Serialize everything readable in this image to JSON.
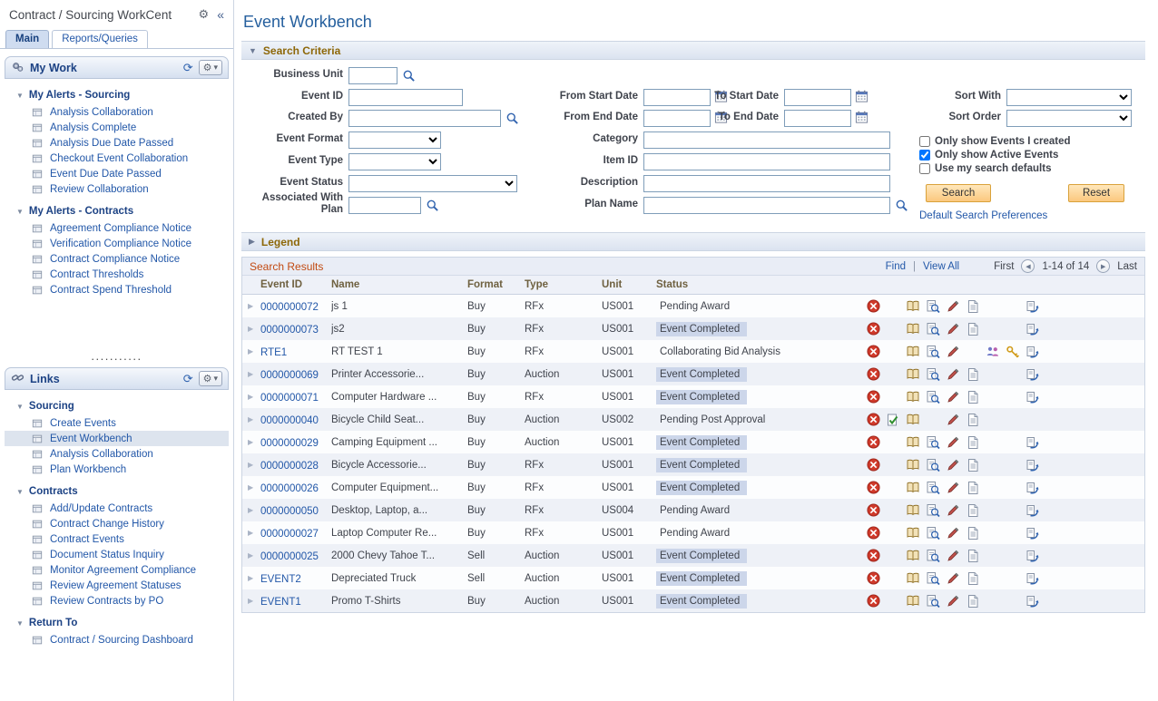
{
  "icons": {
    "settings": "⚙",
    "collapse": "«",
    "refresh": "⟳",
    "dropdown": "▾",
    "expanded": "▼",
    "collapsed": "▶",
    "expand_row": "▶",
    "prev": "◀",
    "next": "▶"
  },
  "colors": {
    "accent_blue": "#2257a8",
    "section_title": "#8d6708",
    "grid_title": "#c24a12",
    "status_highlight": "#ccd6ea",
    "button": "#fbc87e"
  },
  "sidebar": {
    "title": "Contract / Sourcing WorkCent",
    "separator": "...........",
    "tabs": [
      {
        "label": "Main",
        "active": true
      },
      {
        "label": "Reports/Queries",
        "active": false
      }
    ],
    "pagelets": [
      {
        "title": "My Work",
        "icon": "gears",
        "sections": [
          {
            "title": "My Alerts - Sourcing",
            "items": [
              "Analysis Collaboration",
              "Analysis Complete",
              "Analysis Due Date Passed",
              "Checkout Event Collaboration",
              "Event Due Date Passed",
              "Review Collaboration"
            ]
          },
          {
            "title": "My Alerts - Contracts",
            "items": [
              "Agreement Compliance Notice",
              "Verification Compliance Notice",
              "Contract Compliance Notice",
              "Contract Thresholds",
              "Contract Spend Threshold"
            ]
          }
        ]
      },
      {
        "title": "Links",
        "icon": "chain",
        "sections": [
          {
            "title": "Sourcing",
            "selected": "Event Workbench",
            "items": [
              "Create Events",
              "Event Workbench",
              "Analysis Collaboration",
              "Plan Workbench"
            ]
          },
          {
            "title": "Contracts",
            "items": [
              "Add/Update Contracts",
              "Contract Change History",
              "Contract Events",
              "Document Status Inquiry",
              "Monitor Agreement Compliance",
              "Review Agreement Statuses",
              "Review Contracts by PO"
            ]
          },
          {
            "title": "Return To",
            "items": [
              "Contract / Sourcing Dashboard"
            ]
          }
        ]
      }
    ]
  },
  "main": {
    "title": "Event Workbench",
    "search": {
      "section_title": "Search Criteria",
      "fields": {
        "business_unit": "Business Unit",
        "event_id": "Event ID",
        "created_by": "Created By",
        "event_format": "Event Format",
        "event_type": "Event Type",
        "event_status": "Event Status",
        "associated_with_plan": "Associated With Plan",
        "from_start_date": "From Start Date",
        "to_start_date": "To Start Date",
        "from_end_date": "From End Date",
        "to_end_date": "To End Date",
        "category": "Category",
        "item_id": "Item ID",
        "description": "Description",
        "plan_name": "Plan Name",
        "sort_with": "Sort With",
        "sort_order": "Sort Order"
      },
      "checkboxes": [
        {
          "label": "Only show Events I created",
          "checked": false
        },
        {
          "label": "Only show Active Events",
          "checked": true
        },
        {
          "label": "Use my search defaults",
          "checked": false
        }
      ],
      "buttons": {
        "search": "Search",
        "reset": "Reset"
      },
      "preferences_link": "Default Search Preferences"
    },
    "legend_title": "Legend",
    "grid": {
      "title": "Search Results",
      "find": "Find",
      "divider": "|",
      "view_all": "View All",
      "first": "First",
      "range": "1-14 of 14",
      "last": "Last",
      "columns": [
        "Event ID",
        "Name",
        "Format",
        "Type",
        "Unit",
        "Status"
      ],
      "rows": [
        {
          "id": "0000000072",
          "name": "js 1",
          "format": "Buy",
          "type": "RFx",
          "unit": "US001",
          "status": "Pending Award",
          "hl": false,
          "icons": [
            "delete",
            "",
            "book",
            "zoom",
            "pencil",
            "doc",
            "",
            "",
            "workflow"
          ]
        },
        {
          "id": "0000000073",
          "name": "js2",
          "format": "Buy",
          "type": "RFx",
          "unit": "US001",
          "status": "Event Completed",
          "hl": true,
          "icons": [
            "delete",
            "",
            "book",
            "zoom",
            "pencil",
            "doc",
            "",
            "",
            "workflow"
          ]
        },
        {
          "id": "RTE1",
          "name": "RT TEST 1",
          "format": "Buy",
          "type": "RFx",
          "unit": "US001",
          "status": "Collaborating Bid Analysis",
          "hl": false,
          "icons": [
            "delete",
            "",
            "book",
            "zoom",
            "pencil",
            "",
            "people",
            "key",
            "workflow"
          ]
        },
        {
          "id": "0000000069",
          "name": "Printer Accessorie...",
          "format": "Buy",
          "type": "Auction",
          "unit": "US001",
          "status": "Event Completed",
          "hl": true,
          "icons": [
            "delete",
            "",
            "book",
            "zoom",
            "pencil",
            "doc",
            "",
            "",
            "workflow"
          ]
        },
        {
          "id": "0000000071",
          "name": "Computer Hardware ...",
          "format": "Buy",
          "type": "RFx",
          "unit": "US001",
          "status": "Event Completed",
          "hl": true,
          "icons": [
            "delete",
            "",
            "book",
            "zoom",
            "pencil",
            "doc",
            "",
            "",
            "workflow"
          ]
        },
        {
          "id": "0000000040",
          "name": "Bicycle Child Seat...",
          "format": "Buy",
          "type": "Auction",
          "unit": "US002",
          "status": "Pending Post Approval",
          "hl": false,
          "icons": [
            "delete",
            "approve",
            "book",
            "",
            "pencil",
            "doc",
            "",
            "",
            ""
          ]
        },
        {
          "id": "0000000029",
          "name": "Camping Equipment ...",
          "format": "Buy",
          "type": "Auction",
          "unit": "US001",
          "status": "Event Completed",
          "hl": true,
          "icons": [
            "delete",
            "",
            "book",
            "zoom",
            "pencil",
            "doc",
            "",
            "",
            "workflow"
          ]
        },
        {
          "id": "0000000028",
          "name": "Bicycle Accessorie...",
          "format": "Buy",
          "type": "RFx",
          "unit": "US001",
          "status": "Event Completed",
          "hl": true,
          "icons": [
            "delete",
            "",
            "book",
            "zoom",
            "pencil",
            "doc",
            "",
            "",
            "workflow"
          ]
        },
        {
          "id": "0000000026",
          "name": "Computer Equipment...",
          "format": "Buy",
          "type": "RFx",
          "unit": "US001",
          "status": "Event Completed",
          "hl": true,
          "icons": [
            "delete",
            "",
            "book",
            "zoom",
            "pencil",
            "doc",
            "",
            "",
            "workflow"
          ]
        },
        {
          "id": "0000000050",
          "name": "Desktop, Laptop, a...",
          "format": "Buy",
          "type": "RFx",
          "unit": "US004",
          "status": "Pending Award",
          "hl": false,
          "icons": [
            "delete",
            "",
            "book",
            "zoom",
            "pencil",
            "doc",
            "",
            "",
            "workflow"
          ]
        },
        {
          "id": "0000000027",
          "name": "Laptop Computer Re...",
          "format": "Buy",
          "type": "RFx",
          "unit": "US001",
          "status": "Pending Award",
          "hl": false,
          "icons": [
            "delete",
            "",
            "book",
            "zoom",
            "pencil",
            "doc",
            "",
            "",
            "workflow"
          ]
        },
        {
          "id": "0000000025",
          "name": "2000 Chevy Tahoe T...",
          "format": "Sell",
          "type": "Auction",
          "unit": "US001",
          "status": "Event Completed",
          "hl": true,
          "icons": [
            "delete",
            "",
            "book",
            "zoom",
            "pencil",
            "doc",
            "",
            "",
            "workflow"
          ]
        },
        {
          "id": "EVENT2",
          "name": "Depreciated Truck",
          "format": "Sell",
          "type": "Auction",
          "unit": "US001",
          "status": "Event Completed",
          "hl": true,
          "icons": [
            "delete",
            "",
            "book",
            "zoom",
            "pencil",
            "doc",
            "",
            "",
            "workflow"
          ]
        },
        {
          "id": "EVENT1",
          "name": "Promo T-Shirts",
          "format": "Buy",
          "type": "Auction",
          "unit": "US001",
          "status": "Event Completed",
          "hl": true,
          "icons": [
            "delete",
            "",
            "book",
            "zoom",
            "pencil",
            "doc",
            "",
            "",
            "workflow"
          ]
        }
      ]
    }
  }
}
